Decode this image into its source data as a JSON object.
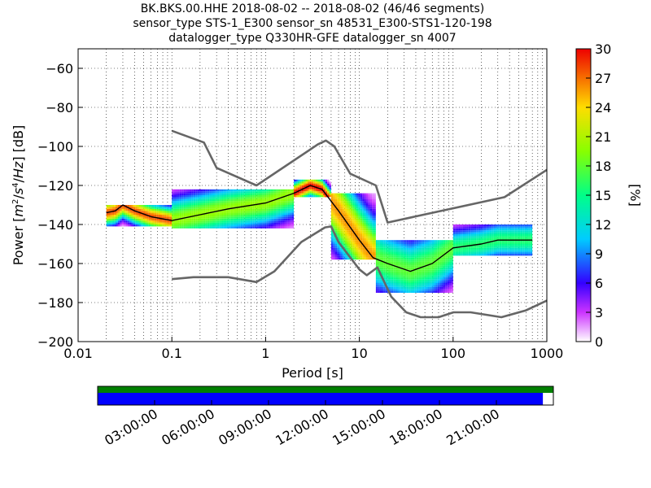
{
  "header": {
    "title_line1": "BK.BKS.00.HHE   2018-08-02 -- 2018-08-02  (46/46 segments)",
    "title_line2": "sensor_type STS-1_E300 sensor_sn 48531_E300-STS1-120-198",
    "title_line3": "datalogger_type Q330HR-GFE datalogger_sn 4007"
  },
  "colorbar": {
    "label": "[%]",
    "ticks": [
      "0",
      "3",
      "6",
      "9",
      "12",
      "15",
      "18",
      "21",
      "24",
      "27",
      "30"
    ],
    "range": [
      0,
      30
    ]
  },
  "timeline": {
    "ticks": [
      "03:00:00",
      "06:00:00",
      "09:00:00",
      "12:00:00",
      "15:00:00",
      "18:00:00",
      "21:00:00"
    ],
    "colors": {
      "top": "#008000",
      "bottom": "#0000ff"
    },
    "coverage_fraction": 0.977
  },
  "chart_data": {
    "type": "heatmap",
    "xlabel": "Period [s]",
    "ylabel": "Power [m²/s⁴/Hz] [dB]",
    "x_scale": "log",
    "xlim": [
      0.01,
      1000
    ],
    "ylim": [
      -200,
      -50
    ],
    "x_ticks": [
      "0.01",
      "0.1",
      "1",
      "10",
      "100",
      "1000"
    ],
    "y_ticks": [
      "−60",
      "−80",
      "−100",
      "−120",
      "−140",
      "−160",
      "−180",
      "−200"
    ],
    "grid": true,
    "series": [
      {
        "kind": "noise-model-high",
        "points": [
          [
            0.1,
            -92
          ],
          [
            0.22,
            -98
          ],
          [
            0.3,
            -111
          ],
          [
            0.8,
            -120
          ],
          [
            3.6,
            -99
          ],
          [
            4.4,
            -97
          ],
          [
            5.4,
            -100
          ],
          [
            8,
            -114
          ],
          [
            15,
            -120
          ],
          [
            20,
            -139
          ],
          [
            354,
            -126
          ],
          [
            1000,
            -112
          ]
        ]
      },
      {
        "kind": "noise-model-low",
        "points": [
          [
            0.1,
            -168
          ],
          [
            0.17,
            -167
          ],
          [
            0.4,
            -167
          ],
          [
            0.8,
            -169.5
          ],
          [
            1.24,
            -164
          ],
          [
            2.4,
            -149
          ],
          [
            4.3,
            -141.5
          ],
          [
            5,
            -141
          ],
          [
            6,
            -149
          ],
          [
            10,
            -163
          ],
          [
            12,
            -166
          ],
          [
            15.6,
            -162
          ],
          [
            21.9,
            -177
          ],
          [
            31.6,
            -185
          ],
          [
            45,
            -187.5
          ],
          [
            70,
            -187.5
          ],
          [
            101,
            -185
          ],
          [
            154,
            -185
          ],
          [
            328,
            -187.5
          ],
          [
            600,
            -184
          ],
          [
            1000,
            -179
          ]
        ]
      },
      {
        "kind": "mean-psd",
        "points": [
          [
            0.02,
            -134
          ],
          [
            0.025,
            -133
          ],
          [
            0.03,
            -130
          ],
          [
            0.04,
            -133
          ],
          [
            0.06,
            -136
          ],
          [
            0.1,
            -138
          ],
          [
            0.2,
            -135
          ],
          [
            0.4,
            -132
          ],
          [
            1,
            -129
          ],
          [
            2,
            -124
          ],
          [
            3,
            -120
          ],
          [
            4,
            -122
          ],
          [
            6,
            -133
          ],
          [
            10,
            -148
          ],
          [
            14,
            -157
          ],
          [
            20,
            -160
          ],
          [
            35,
            -164
          ],
          [
            60,
            -160
          ],
          [
            100,
            -152
          ],
          [
            200,
            -150
          ],
          [
            300,
            -148
          ],
          [
            700,
            -148
          ]
        ]
      }
    ],
    "density_bands": [
      {
        "x": [
          0.02,
          0.1
        ],
        "y_low": -141,
        "y_high": -130,
        "peak_percent": 28
      },
      {
        "x": [
          0.1,
          2
        ],
        "y_low": -142,
        "y_high": -122,
        "peak_percent": 20
      },
      {
        "x": [
          2,
          5
        ],
        "y_low": -126,
        "y_high": -117,
        "peak_percent": 30
      },
      {
        "x": [
          5,
          15
        ],
        "y_low": -158,
        "y_high": -124,
        "peak_percent": 26
      },
      {
        "x": [
          15,
          100
        ],
        "y_low": -175,
        "y_high": -148,
        "peak_percent": 18
      },
      {
        "x": [
          100,
          700
        ],
        "y_low": -156,
        "y_high": -140,
        "peak_percent": 16
      }
    ]
  }
}
